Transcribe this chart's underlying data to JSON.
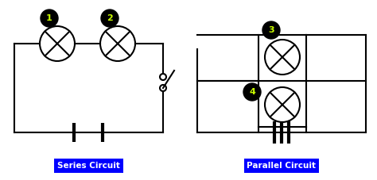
{
  "bg_color": "#ffffff",
  "label_bg": "#0000ff",
  "label_fg": "#ffffff",
  "number_bg": "#000000",
  "number_fg": "#ccff00",
  "wire_color": "#000000",
  "series_label": "Series Circuit",
  "parallel_label": "Parallel Circuit",
  "series_numbers": [
    "1",
    "2"
  ],
  "parallel_numbers": [
    "3",
    "4"
  ],
  "line_width": 1.5,
  "figsize": [
    4.74,
    2.27
  ],
  "dpi": 100
}
